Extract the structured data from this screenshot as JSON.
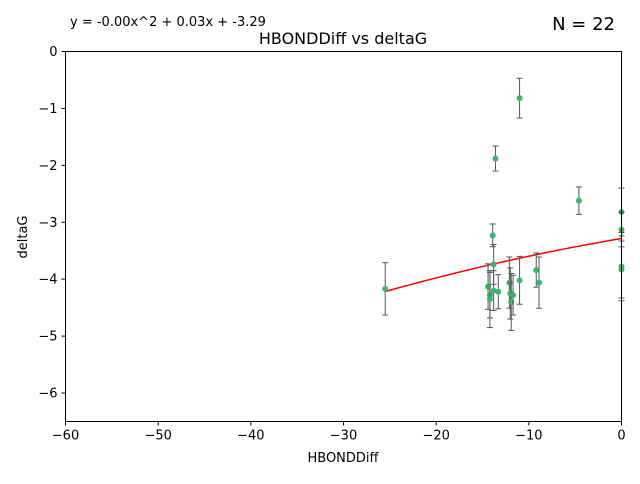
{
  "equation": "y = -0.00x^2 + 0.03x + -3.29",
  "count_label": "N = 22",
  "chart_data": {
    "type": "scatter",
    "title": "HBONDDiff vs deltaG",
    "xlabel": "HBONDDiff",
    "ylabel": "deltaG",
    "xlim": [
      -60,
      0
    ],
    "ylim": [
      -6.5,
      0
    ],
    "xticks": [
      -60,
      -50,
      -40,
      -30,
      -20,
      -10,
      0
    ],
    "yticks": [
      -6,
      -5,
      -4,
      -3,
      -2,
      -1,
      0
    ],
    "grid": false,
    "colors": {
      "points": "#3cb371",
      "errorbars": "#555555",
      "fit": "#ff0000"
    },
    "points": [
      {
        "x": -25.5,
        "y": -4.17,
        "err": 0.46
      },
      {
        "x": -14.4,
        "y": -4.13,
        "err": 0.4
      },
      {
        "x": -14.2,
        "y": -4.28,
        "err": 0.4
      },
      {
        "x": -14.2,
        "y": -4.35,
        "err": 0.5
      },
      {
        "x": -13.9,
        "y": -3.23,
        "err": 0.2
      },
      {
        "x": -13.8,
        "y": -3.74,
        "err": 0.35
      },
      {
        "x": -13.8,
        "y": -4.2,
        "err": 0.35
      },
      {
        "x": -13.6,
        "y": -1.88,
        "err": 0.22
      },
      {
        "x": -13.3,
        "y": -4.22,
        "err": 0.3
      },
      {
        "x": -12.1,
        "y": -4.06,
        "err": 0.45
      },
      {
        "x": -12.0,
        "y": -4.25,
        "err": 0.45
      },
      {
        "x": -11.9,
        "y": -4.4,
        "err": 0.5
      },
      {
        "x": -11.7,
        "y": -4.28,
        "err": 0.35
      },
      {
        "x": -11.0,
        "y": -0.82,
        "err": 0.35
      },
      {
        "x": -11.0,
        "y": -4.02,
        "err": 0.42
      },
      {
        "x": -9.2,
        "y": -3.84,
        "err": 0.3
      },
      {
        "x": -8.9,
        "y": -4.06,
        "err": 0.45
      },
      {
        "x": -4.6,
        "y": -2.62,
        "err": 0.24
      },
      {
        "x": 0.0,
        "y": -2.82,
        "err": 0.42
      },
      {
        "x": 0.0,
        "y": -3.13,
        "err": 0.3
      },
      {
        "x": 0.0,
        "y": -3.78,
        "err": 0.6
      },
      {
        "x": 0.0,
        "y": -3.83,
        "err": 0.5
      }
    ],
    "fit": {
      "a": -0.00035,
      "b": 0.0276,
      "c": -3.285,
      "x_range": [
        -25.5,
        0
      ]
    }
  }
}
